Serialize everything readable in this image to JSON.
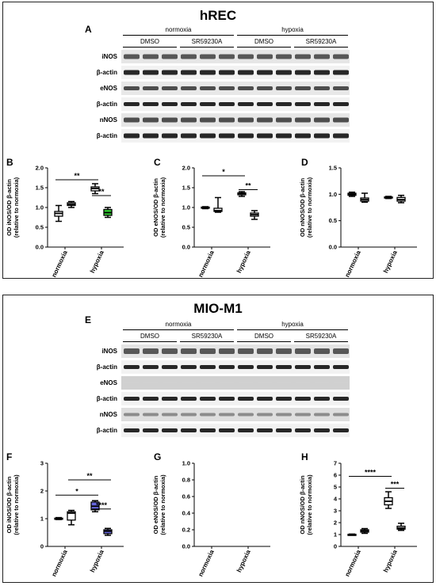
{
  "figure": {
    "panel_top_title": "hREC",
    "panel_bottom_title": "MIO-M1",
    "letters": {
      "A": "A",
      "B": "B",
      "C": "C",
      "D": "D",
      "E": "E",
      "F": "F",
      "G": "G",
      "H": "H"
    },
    "conditions": {
      "normoxia": "normoxia",
      "hypoxia": "hypoxia",
      "dmso": "DMSO",
      "sr": "SR59230A"
    },
    "blot_labels_top": [
      "iNOS",
      "β-actin",
      "eNOS",
      "β-actin",
      "nNOS",
      "β-actin"
    ],
    "blot_labels_bottom": [
      "iNOS",
      "β-actin",
      "eNOS",
      "β-actin",
      "nNOS",
      "β-actin"
    ]
  },
  "chart_data": [
    {
      "id": "B",
      "type": "box",
      "ylabel_line1": "OD iNOS/OD β-actin",
      "ylabel_line2": "(relative to normoxia)",
      "ylim": [
        0,
        2.0
      ],
      "yticks": [
        "0.0",
        "0.5",
        "1.0",
        "1.5",
        "2.0"
      ],
      "categories": [
        "normoxia",
        "hypoxia"
      ],
      "boxes": [
        {
          "min": 0.65,
          "q1": 0.78,
          "median": 0.85,
          "q3": 0.9,
          "max": 1.05,
          "fill": "#ffffff"
        },
        {
          "min": 1.0,
          "q1": 1.05,
          "median": 1.08,
          "q3": 1.12,
          "max": 1.15,
          "fill": "#ffffff"
        },
        {
          "min": 1.35,
          "q1": 1.42,
          "median": 1.48,
          "q3": 1.52,
          "max": 1.6,
          "fill": "#ffffff"
        },
        {
          "min": 0.75,
          "q1": 0.8,
          "median": 0.87,
          "q3": 0.95,
          "max": 1.0,
          "fill": "#33cc33"
        }
      ],
      "sig": [
        {
          "from": 0,
          "to": 2,
          "y": 1.7,
          "label": "**"
        },
        {
          "from": 2,
          "to": 3,
          "y": 1.3,
          "label": "**"
        }
      ]
    },
    {
      "id": "C",
      "type": "box",
      "ylabel_line1": "OD eNOS/OD β-actin",
      "ylabel_line2": "(relative to normoxia)",
      "ylim": [
        0,
        2.0
      ],
      "yticks": [
        "0.0",
        "0.5",
        "1.0",
        "1.5",
        "2.0"
      ],
      "categories": [
        "normoxia",
        "hypoxia"
      ],
      "boxes": [
        {
          "min": 0.97,
          "q1": 0.98,
          "median": 1.0,
          "q3": 1.01,
          "max": 1.02,
          "fill": "#ffffff"
        },
        {
          "min": 0.88,
          "q1": 0.9,
          "median": 0.92,
          "q3": 0.98,
          "max": 1.25,
          "fill": "#ffffff"
        },
        {
          "min": 1.28,
          "q1": 1.32,
          "median": 1.35,
          "q3": 1.37,
          "max": 1.4,
          "fill": "#ffffff"
        },
        {
          "min": 0.7,
          "q1": 0.78,
          "median": 0.82,
          "q3": 0.86,
          "max": 0.92,
          "fill": "#ffffff"
        }
      ],
      "sig": [
        {
          "from": 0,
          "to": 2,
          "y": 1.8,
          "label": "*"
        },
        {
          "from": 2,
          "to": 3,
          "y": 1.45,
          "label": "**"
        }
      ]
    },
    {
      "id": "D",
      "type": "box",
      "ylabel_line1": "OD nNOS/OD β-actin",
      "ylabel_line2": "(relative to normoxia)",
      "ylim": [
        0,
        1.5
      ],
      "yticks": [
        "0.0",
        "0.5",
        "1.0",
        "1.5"
      ],
      "categories": [
        "normoxia",
        "hypoxia"
      ],
      "boxes": [
        {
          "min": 0.96,
          "q1": 0.98,
          "median": 1.0,
          "q3": 1.02,
          "max": 1.04,
          "fill": "#ffffff"
        },
        {
          "min": 0.85,
          "q1": 0.87,
          "median": 0.9,
          "q3": 0.93,
          "max": 1.02,
          "fill": "#ffffff"
        },
        {
          "min": 0.92,
          "q1": 0.93,
          "median": 0.94,
          "q3": 0.95,
          "max": 0.96,
          "fill": "#ffffff"
        },
        {
          "min": 0.84,
          "q1": 0.87,
          "median": 0.9,
          "q3": 0.94,
          "max": 0.98,
          "fill": "#ffffff"
        }
      ],
      "sig": []
    },
    {
      "id": "F",
      "type": "box",
      "ylabel_line1": "OD iNOS/OD β-actin",
      "ylabel_line2": "(relative to normoxia)",
      "ylim": [
        0,
        3
      ],
      "yticks": [
        "0",
        "1",
        "2",
        "3"
      ],
      "categories": [
        "normoxia",
        "hypoxia"
      ],
      "boxes": [
        {
          "min": 0.97,
          "q1": 0.98,
          "median": 1.0,
          "q3": 1.02,
          "max": 1.04,
          "fill": "#ffffff"
        },
        {
          "min": 0.78,
          "q1": 0.95,
          "median": 1.2,
          "q3": 1.25,
          "max": 1.3,
          "fill": "#ffffff"
        },
        {
          "min": 1.25,
          "q1": 1.32,
          "median": 1.45,
          "q3": 1.6,
          "max": 1.65,
          "fill": "#6666dd"
        },
        {
          "min": 0.4,
          "q1": 0.46,
          "median": 0.55,
          "q3": 0.6,
          "max": 0.65,
          "fill": "#6666dd"
        }
      ],
      "sig": [
        {
          "from": 0,
          "to": 2,
          "y": 1.85,
          "label": "*"
        },
        {
          "from": 1,
          "to": 3,
          "y": 2.4,
          "label": "**"
        },
        {
          "from": 2,
          "to": 3,
          "y": 1.35,
          "label": "****"
        }
      ]
    },
    {
      "id": "G",
      "type": "box",
      "ylabel_line1": "OD eNOS/OD β-actin",
      "ylabel_line2": "(relative to normoxia)",
      "ylim": [
        0,
        1.0
      ],
      "yticks": [
        "0.0",
        "0.2",
        "0.4",
        "0.6",
        "0.8",
        "1.0"
      ],
      "categories": [
        "normoxia",
        "hypoxia"
      ],
      "boxes": [],
      "sig": []
    },
    {
      "id": "H",
      "type": "box",
      "ylabel_line1": "OD nNOS/OD β-actin",
      "ylabel_line2": "(relative to normoxia)",
      "ylim": [
        0,
        7
      ],
      "yticks": [
        "0",
        "1",
        "2",
        "3",
        "4",
        "5",
        "6",
        "7"
      ],
      "categories": [
        "normoxia",
        "hypoxia"
      ],
      "boxes": [
        {
          "min": 0.97,
          "q1": 0.98,
          "median": 1.0,
          "q3": 1.02,
          "max": 1.04,
          "fill": "#ffffff"
        },
        {
          "min": 1.1,
          "q1": 1.2,
          "median": 1.3,
          "q3": 1.4,
          "max": 1.5,
          "fill": "#ffffff"
        },
        {
          "min": 3.2,
          "q1": 3.5,
          "median": 3.8,
          "q3": 4.1,
          "max": 4.6,
          "fill": "#ffffff"
        },
        {
          "min": 1.35,
          "q1": 1.45,
          "median": 1.55,
          "q3": 1.7,
          "max": 1.95,
          "fill": "#ffffff"
        }
      ],
      "sig": [
        {
          "from": 0,
          "to": 2,
          "y": 5.9,
          "label": "****"
        },
        {
          "from": 2,
          "to": 3,
          "y": 4.9,
          "label": "***"
        }
      ]
    }
  ]
}
